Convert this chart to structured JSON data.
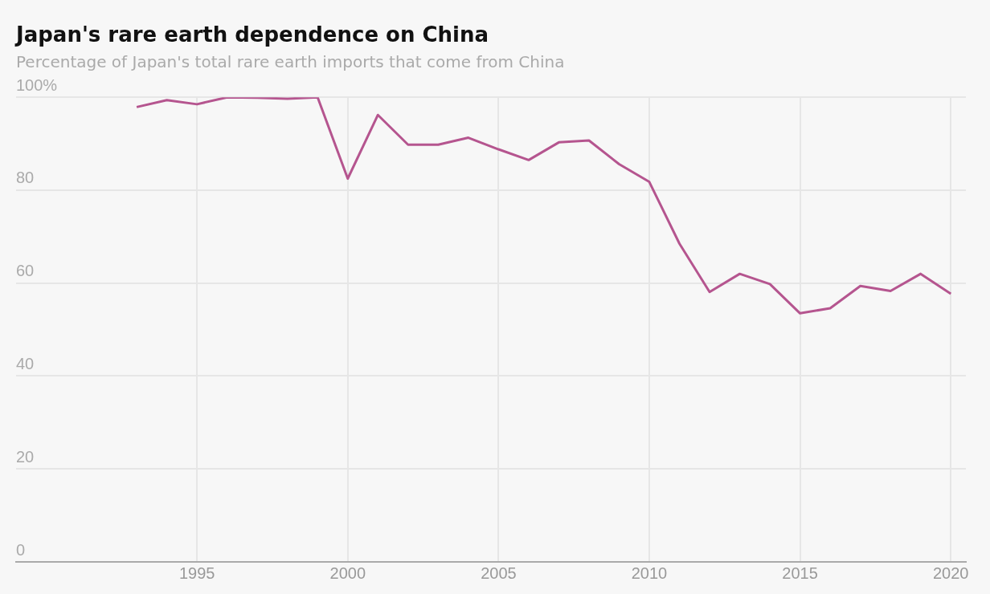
{
  "chart_data": {
    "type": "line",
    "title": "Japan's rare earth dependence on China",
    "subtitle": "Percentage of Japan's total rare earth imports that come from China",
    "x": [
      1993,
      1994,
      1995,
      1996,
      1997,
      1998,
      1999,
      2000,
      2001,
      2002,
      2003,
      2004,
      2005,
      2006,
      2007,
      2008,
      2009,
      2010,
      2011,
      2012,
      2013,
      2014,
      2015,
      2016,
      2017,
      2018,
      2019,
      2020
    ],
    "series": [
      {
        "color": "#b5558f",
        "values": [
          97.9,
          99.4,
          98.5,
          100,
          99.9,
          99.7,
          100,
          82.5,
          96.2,
          89.8,
          89.8,
          91.3,
          88.8,
          86.5,
          90.3,
          90.7,
          85.6,
          81.8,
          68.5,
          58.1,
          62,
          59.8,
          53.5,
          54.6,
          59.4,
          58.3,
          62,
          57.7
        ]
      }
    ],
    "xlim": [
      1989,
      2020.5
    ],
    "xticks": [
      1995,
      2000,
      2005,
      2010,
      2015,
      2020
    ],
    "ylim": [
      0,
      100
    ],
    "yticks": [
      0,
      20,
      40,
      60,
      80,
      {
        "value": 100,
        "label": "100%"
      }
    ],
    "grid": true,
    "legend": false,
    "marker": "none",
    "line_style": "solid"
  }
}
